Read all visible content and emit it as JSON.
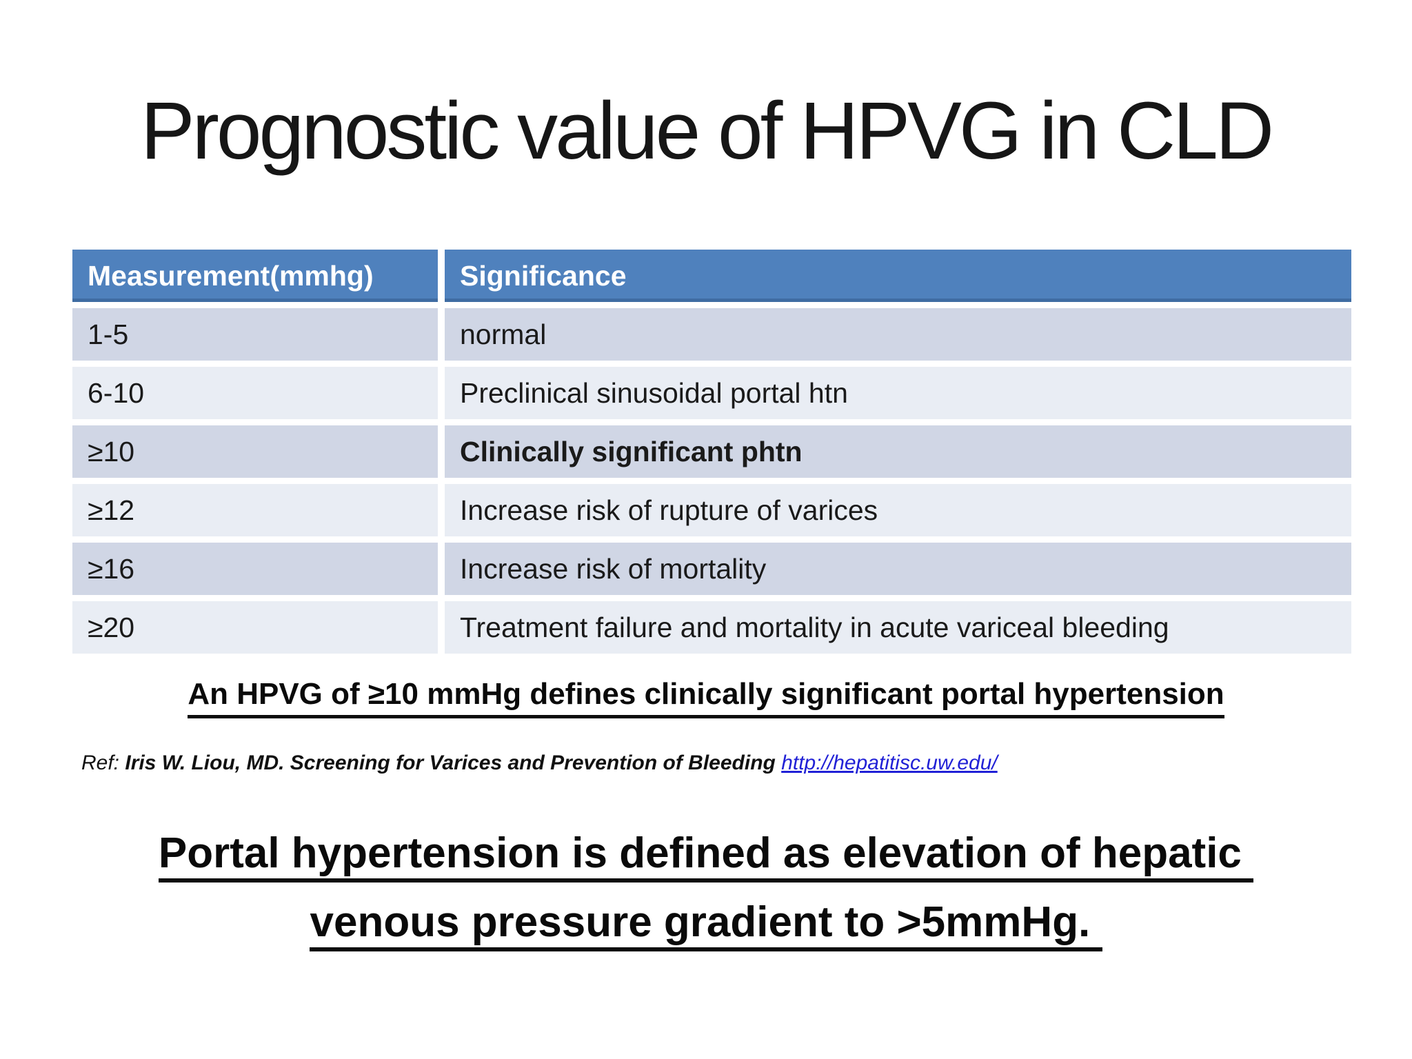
{
  "slide": {
    "title": "Prognostic value of HPVG in CLD",
    "table": {
      "headers": {
        "measurement": "Measurement(mmhg)",
        "significance": "Significance"
      },
      "rows": [
        {
          "measurement": "1-5",
          "significance": "normal"
        },
        {
          "measurement": "6-10",
          "significance": "Preclinical sinusoidal portal htn"
        },
        {
          "measurement": "≥10",
          "significance": "Clinically significant phtn"
        },
        {
          "measurement": "≥12",
          "significance": "Increase risk of rupture of varices"
        },
        {
          "measurement": "≥16",
          "significance": "Increase risk of mortality"
        },
        {
          "measurement": "≥20",
          "significance": "Treatment failure and mortality in acute variceal bleeding"
        }
      ]
    },
    "key_statement": "An HPVG of ≥10 mmHg defines clinically significant portal hypertension",
    "reference": {
      "prefix": "Ref: ",
      "citation": "Iris W. Liou, MD. Screening for Varices and Prevention of Bleeding ",
      "link": "http://hepatitisc.uw.edu/"
    },
    "definition": {
      "line1": "Portal hypertension is defined as elevation of hepatic ",
      "line2": "venous pressure gradient to >5mmHg. "
    },
    "colors": {
      "header_bg": "#4f81bd",
      "header_text": "#ffffff",
      "row_dark": "#d0d6e5",
      "row_light": "#e9edf4",
      "link_blue": "#2121d6",
      "text": "#0a0a0a"
    }
  }
}
